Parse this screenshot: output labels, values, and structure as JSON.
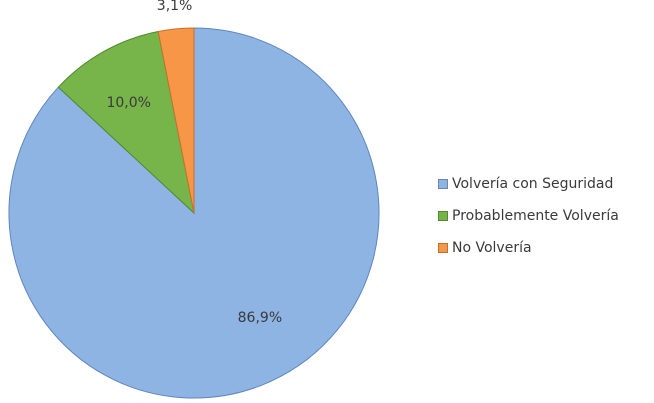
{
  "chart_data": {
    "type": "pie",
    "categories": [
      "Volvería con Seguridad",
      "Probablemente Volvería",
      "No Volvería"
    ],
    "values": [
      86.9,
      10.0,
      3.1
    ],
    "data_labels": [
      "86,9%",
      "10,0%",
      "3,1%"
    ],
    "colors": [
      "#8eb4e3",
      "#77b54a",
      "#f79646"
    ],
    "border_colors": [
      "#5f86bd",
      "#4f8a2c",
      "#c8702c"
    ],
    "start_angle_deg": 0,
    "direction": "clockwise",
    "legend_position": "right"
  }
}
